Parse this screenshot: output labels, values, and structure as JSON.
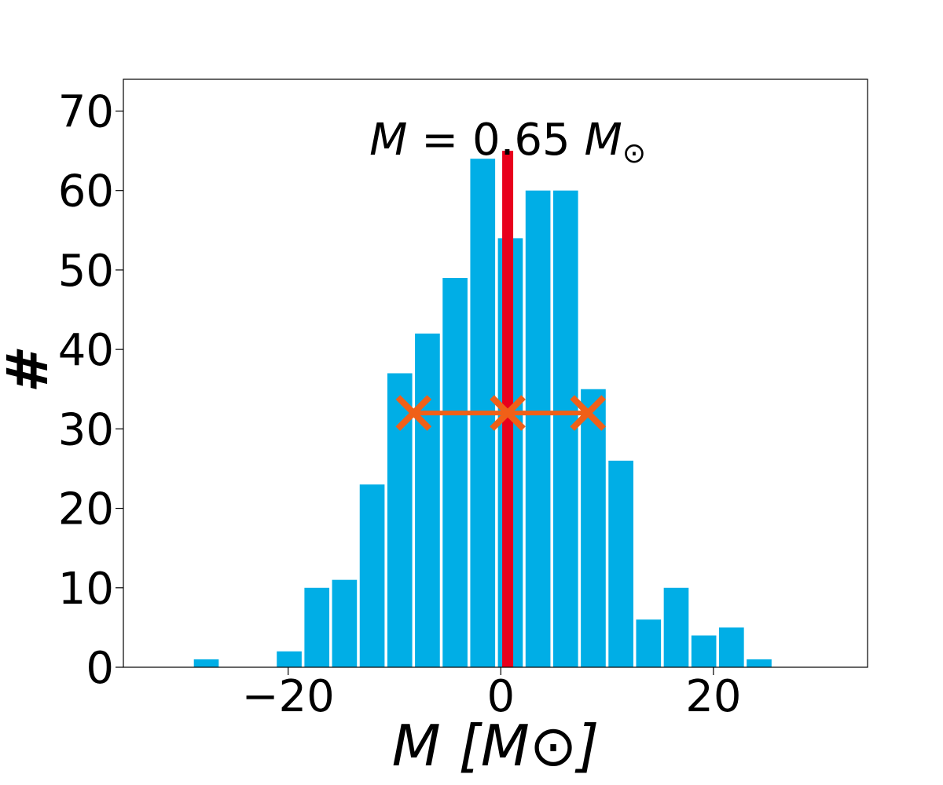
{
  "chart_data": {
    "type": "bar",
    "title": "",
    "xlabel": "M [M⊙]",
    "ylabel": "#",
    "xlim": [
      -35.5,
      34.5
    ],
    "ylim": [
      0,
      74
    ],
    "xticks": [
      -20,
      0,
      20
    ],
    "xtick_labels": [
      "−20",
      "0",
      "20"
    ],
    "yticks": [
      0,
      10,
      20,
      30,
      40,
      50,
      60,
      70
    ],
    "ytick_labels": [
      "0",
      "10",
      "20",
      "30",
      "40",
      "50",
      "60",
      "70"
    ],
    "bin_width": 2.6,
    "bar_fill_fraction": 0.9,
    "bar_color": "#00aee6",
    "bins": [
      {
        "center": -27.7,
        "count": 1
      },
      {
        "center": -19.9,
        "count": 2
      },
      {
        "center": -17.3,
        "count": 10
      },
      {
        "center": -14.7,
        "count": 11
      },
      {
        "center": -12.1,
        "count": 23
      },
      {
        "center": -9.5,
        "count": 37
      },
      {
        "center": -6.9,
        "count": 42
      },
      {
        "center": -4.3,
        "count": 49
      },
      {
        "center": -1.7,
        "count": 64
      },
      {
        "center": 0.9,
        "count": 54
      },
      {
        "center": 3.5,
        "count": 60
      },
      {
        "center": 6.1,
        "count": 60
      },
      {
        "center": 8.7,
        "count": 35
      },
      {
        "center": 11.3,
        "count": 26
      },
      {
        "center": 13.9,
        "count": 6
      },
      {
        "center": 16.5,
        "count": 10
      },
      {
        "center": 19.1,
        "count": 4
      },
      {
        "center": 21.7,
        "count": 5
      },
      {
        "center": 24.3,
        "count": 1
      }
    ],
    "mean_line": {
      "x": 0.65,
      "y_top": 65,
      "color": "#e8001c"
    },
    "annotation": {
      "value": "0.65",
      "y": 66.5
    },
    "error_bar": {
      "center": 0.65,
      "low": -8.2,
      "high": 8.2,
      "y": 32,
      "color": "#f06018"
    },
    "grid": false,
    "legend": "none"
  }
}
